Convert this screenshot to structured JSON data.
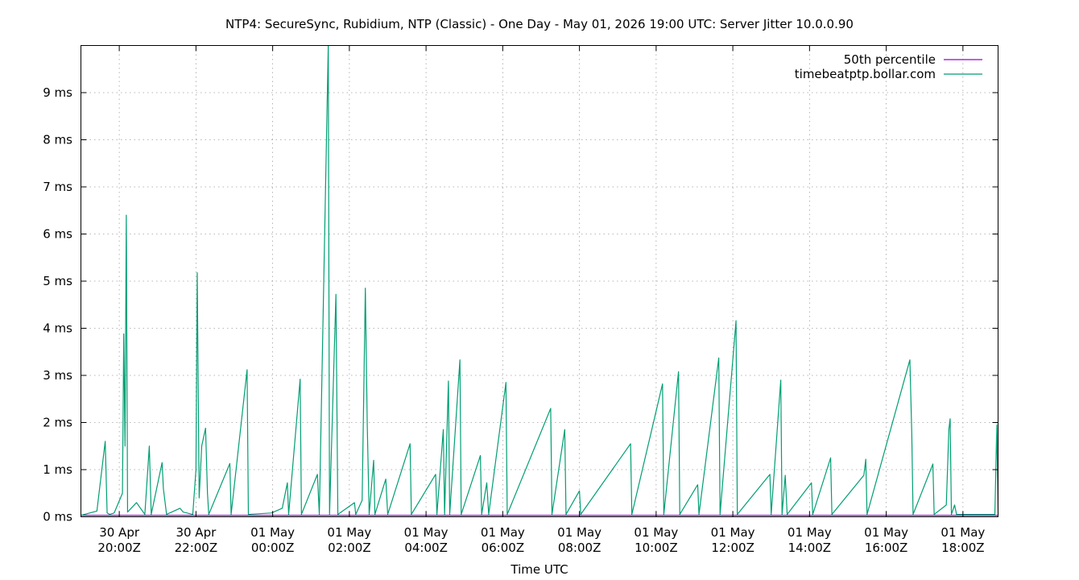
{
  "chart_data": {
    "type": "line",
    "title": "NTP4: SecureSync, Rubidium, NTP (Classic) - One Day - May 01, 2026 19:00 UTC: Server Jitter 10.0.0.90",
    "xlabel": "Time UTC",
    "ylabel": "",
    "x_unit": "hours",
    "xlim": [
      "2026-04-30T19:00Z",
      "2026-05-01T18:55Z"
    ],
    "ylim": [
      0,
      10
    ],
    "y_ticks": [
      {
        "value": 0,
        "label": "0 ms"
      },
      {
        "value": 1,
        "label": "1 ms"
      },
      {
        "value": 2,
        "label": "2 ms"
      },
      {
        "value": 3,
        "label": "3 ms"
      },
      {
        "value": 4,
        "label": "4 ms"
      },
      {
        "value": 5,
        "label": "5 ms"
      },
      {
        "value": 6,
        "label": "6 ms"
      },
      {
        "value": 7,
        "label": "7 ms"
      },
      {
        "value": 8,
        "label": "8 ms"
      },
      {
        "value": 9,
        "label": "9 ms"
      }
    ],
    "x_ticks": [
      {
        "value": "2026-04-30T20:00Z",
        "line1": "30 Apr",
        "line2": "20:00Z"
      },
      {
        "value": "2026-04-30T22:00Z",
        "line1": "30 Apr",
        "line2": "22:00Z"
      },
      {
        "value": "2026-05-01T00:00Z",
        "line1": "01 May",
        "line2": "00:00Z"
      },
      {
        "value": "2026-05-01T02:00Z",
        "line1": "01 May",
        "line2": "02:00Z"
      },
      {
        "value": "2026-05-01T04:00Z",
        "line1": "01 May",
        "line2": "04:00Z"
      },
      {
        "value": "2026-05-01T06:00Z",
        "line1": "01 May",
        "line2": "06:00Z"
      },
      {
        "value": "2026-05-01T08:00Z",
        "line1": "01 May",
        "line2": "08:00Z"
      },
      {
        "value": "2026-05-01T10:00Z",
        "line1": "01 May",
        "line2": "10:00Z"
      },
      {
        "value": "2026-05-01T12:00Z",
        "line1": "01 May",
        "line2": "12:00Z"
      },
      {
        "value": "2026-05-01T14:00Z",
        "line1": "01 May",
        "line2": "14:00Z"
      },
      {
        "value": "2026-05-01T16:00Z",
        "line1": "01 May",
        "line2": "16:00Z"
      },
      {
        "value": "2026-05-01T18:00Z",
        "line1": "01 May",
        "line2": "18:00Z"
      }
    ],
    "grid": true,
    "legend_position": "top-right",
    "series": [
      {
        "name": "50th percentile",
        "color": "#9400d3",
        "points": [
          [
            "2026-04-30T19:00Z",
            0.03
          ],
          [
            "2026-05-01T18:55Z",
            0.03
          ]
        ]
      },
      {
        "name": "timebeatptp.bollar.com",
        "color": "#009e73",
        "points": [
          [
            "2026-04-30T19:00Z",
            0.03
          ],
          [
            "2026-04-30T19:25Z",
            0.12
          ],
          [
            "2026-04-30T19:38Z",
            1.6
          ],
          [
            "2026-04-30T19:41Z",
            0.08
          ],
          [
            "2026-04-30T19:45Z",
            0.05
          ],
          [
            "2026-04-30T19:52Z",
            0.08
          ],
          [
            "2026-04-30T20:05Z",
            0.5
          ],
          [
            "2026-04-30T20:07Z",
            3.88
          ],
          [
            "2026-04-30T20:09Z",
            1.5
          ],
          [
            "2026-04-30T20:11Z",
            6.4
          ],
          [
            "2026-04-30T20:13Z",
            0.1
          ],
          [
            "2026-04-30T20:27Z",
            0.3
          ],
          [
            "2026-04-30T20:40Z",
            0.05
          ],
          [
            "2026-04-30T20:47Z",
            1.5
          ],
          [
            "2026-04-30T20:50Z",
            0.05
          ],
          [
            "2026-04-30T21:07Z",
            1.15
          ],
          [
            "2026-04-30T21:09Z",
            0.6
          ],
          [
            "2026-04-30T21:14Z",
            0.05
          ],
          [
            "2026-04-30T21:35Z",
            0.18
          ],
          [
            "2026-04-30T21:40Z",
            0.1
          ],
          [
            "2026-04-30T21:55Z",
            0.05
          ],
          [
            "2026-04-30T22:00Z",
            1.0
          ],
          [
            "2026-04-30T22:02Z",
            5.18
          ],
          [
            "2026-04-30T22:05Z",
            0.4
          ],
          [
            "2026-04-30T22:09Z",
            1.5
          ],
          [
            "2026-04-30T22:15Z",
            1.88
          ],
          [
            "2026-04-30T22:18Z",
            0.5
          ],
          [
            "2026-04-30T22:20Z",
            0.05
          ],
          [
            "2026-04-30T22:53Z",
            1.13
          ],
          [
            "2026-04-30T22:55Z",
            0.05
          ],
          [
            "2026-04-30T23:20Z",
            3.12
          ],
          [
            "2026-04-30T23:22Z",
            0.05
          ],
          [
            "2026-04-30T23:58Z",
            0.08
          ],
          [
            "2026-05-01T00:15Z",
            0.18
          ],
          [
            "2026-05-01T00:23Z",
            0.72
          ],
          [
            "2026-05-01T00:25Z",
            0.05
          ],
          [
            "2026-05-01T00:43Z",
            2.92
          ],
          [
            "2026-05-01T00:45Z",
            0.05
          ],
          [
            "2026-05-01T01:10Z",
            0.9
          ],
          [
            "2026-05-01T01:13Z",
            0.05
          ],
          [
            "2026-05-01T01:27Z",
            10.0
          ],
          [
            "2026-05-01T01:29Z",
            0.05
          ],
          [
            "2026-05-01T01:39Z",
            4.72
          ],
          [
            "2026-05-01T01:42Z",
            0.05
          ],
          [
            "2026-05-01T02:08Z",
            0.3
          ],
          [
            "2026-05-01T02:10Z",
            0.05
          ],
          [
            "2026-05-01T02:20Z",
            0.35
          ],
          [
            "2026-05-01T02:25Z",
            4.85
          ],
          [
            "2026-05-01T02:28Z",
            1.95
          ],
          [
            "2026-05-01T02:31Z",
            0.05
          ],
          [
            "2026-05-01T02:38Z",
            1.2
          ],
          [
            "2026-05-01T02:40Z",
            0.05
          ],
          [
            "2026-05-01T02:57Z",
            0.8
          ],
          [
            "2026-05-01T03:00Z",
            0.05
          ],
          [
            "2026-05-01T03:35Z",
            1.55
          ],
          [
            "2026-05-01T03:37Z",
            0.05
          ],
          [
            "2026-05-01T04:15Z",
            0.9
          ],
          [
            "2026-05-01T04:17Z",
            0.05
          ],
          [
            "2026-05-01T04:27Z",
            1.85
          ],
          [
            "2026-05-01T04:29Z",
            0.05
          ],
          [
            "2026-05-01T04:35Z",
            2.88
          ],
          [
            "2026-05-01T04:37Z",
            0.05
          ],
          [
            "2026-05-01T04:53Z",
            3.33
          ],
          [
            "2026-05-01T04:55Z",
            0.05
          ],
          [
            "2026-05-01T05:25Z",
            1.3
          ],
          [
            "2026-05-01T05:27Z",
            0.05
          ],
          [
            "2026-05-01T05:35Z",
            0.72
          ],
          [
            "2026-05-01T05:38Z",
            0.05
          ],
          [
            "2026-05-01T06:05Z",
            2.85
          ],
          [
            "2026-05-01T06:07Z",
            0.05
          ],
          [
            "2026-05-01T07:15Z",
            2.3
          ],
          [
            "2026-05-01T07:17Z",
            0.05
          ],
          [
            "2026-05-01T07:37Z",
            1.85
          ],
          [
            "2026-05-01T07:39Z",
            0.05
          ],
          [
            "2026-05-01T08:00Z",
            0.55
          ],
          [
            "2026-05-01T08:02Z",
            0.05
          ],
          [
            "2026-05-01T09:20Z",
            1.55
          ],
          [
            "2026-05-01T09:22Z",
            0.05
          ],
          [
            "2026-05-01T10:10Z",
            2.82
          ],
          [
            "2026-05-01T10:12Z",
            0.05
          ],
          [
            "2026-05-01T10:35Z",
            3.08
          ],
          [
            "2026-05-01T10:37Z",
            0.05
          ],
          [
            "2026-05-01T11:05Z",
            0.68
          ],
          [
            "2026-05-01T11:07Z",
            0.05
          ],
          [
            "2026-05-01T11:38Z",
            3.37
          ],
          [
            "2026-05-01T11:40Z",
            0.05
          ],
          [
            "2026-05-01T12:05Z",
            4.16
          ],
          [
            "2026-05-01T12:07Z",
            0.05
          ],
          [
            "2026-05-01T12:58Z",
            0.9
          ],
          [
            "2026-05-01T13:00Z",
            0.05
          ],
          [
            "2026-05-01T13:15Z",
            2.9
          ],
          [
            "2026-05-01T13:17Z",
            0.05
          ],
          [
            "2026-05-01T13:22Z",
            0.88
          ],
          [
            "2026-05-01T13:25Z",
            0.05
          ],
          [
            "2026-05-01T14:03Z",
            0.72
          ],
          [
            "2026-05-01T14:05Z",
            0.05
          ],
          [
            "2026-05-01T14:33Z",
            1.25
          ],
          [
            "2026-05-01T14:35Z",
            0.05
          ],
          [
            "2026-05-01T15:25Z",
            0.88
          ],
          [
            "2026-05-01T15:28Z",
            1.22
          ],
          [
            "2026-05-01T15:30Z",
            0.05
          ],
          [
            "2026-05-01T16:37Z",
            3.33
          ],
          [
            "2026-05-01T16:40Z",
            1.75
          ],
          [
            "2026-05-01T16:42Z",
            0.05
          ],
          [
            "2026-05-01T17:13Z",
            1.12
          ],
          [
            "2026-05-01T17:15Z",
            0.05
          ],
          [
            "2026-05-01T17:34Z",
            0.25
          ],
          [
            "2026-05-01T17:38Z",
            1.85
          ],
          [
            "2026-05-01T17:40Z",
            2.08
          ],
          [
            "2026-05-01T17:42Z",
            0.05
          ],
          [
            "2026-05-01T17:47Z",
            0.25
          ],
          [
            "2026-05-01T17:50Z",
            0.05
          ],
          [
            "2026-05-01T18:50Z",
            0.05
          ],
          [
            "2026-05-01T18:53Z",
            1.95
          ],
          [
            "2026-05-01T18:55Z",
            0.05
          ]
        ]
      }
    ]
  }
}
